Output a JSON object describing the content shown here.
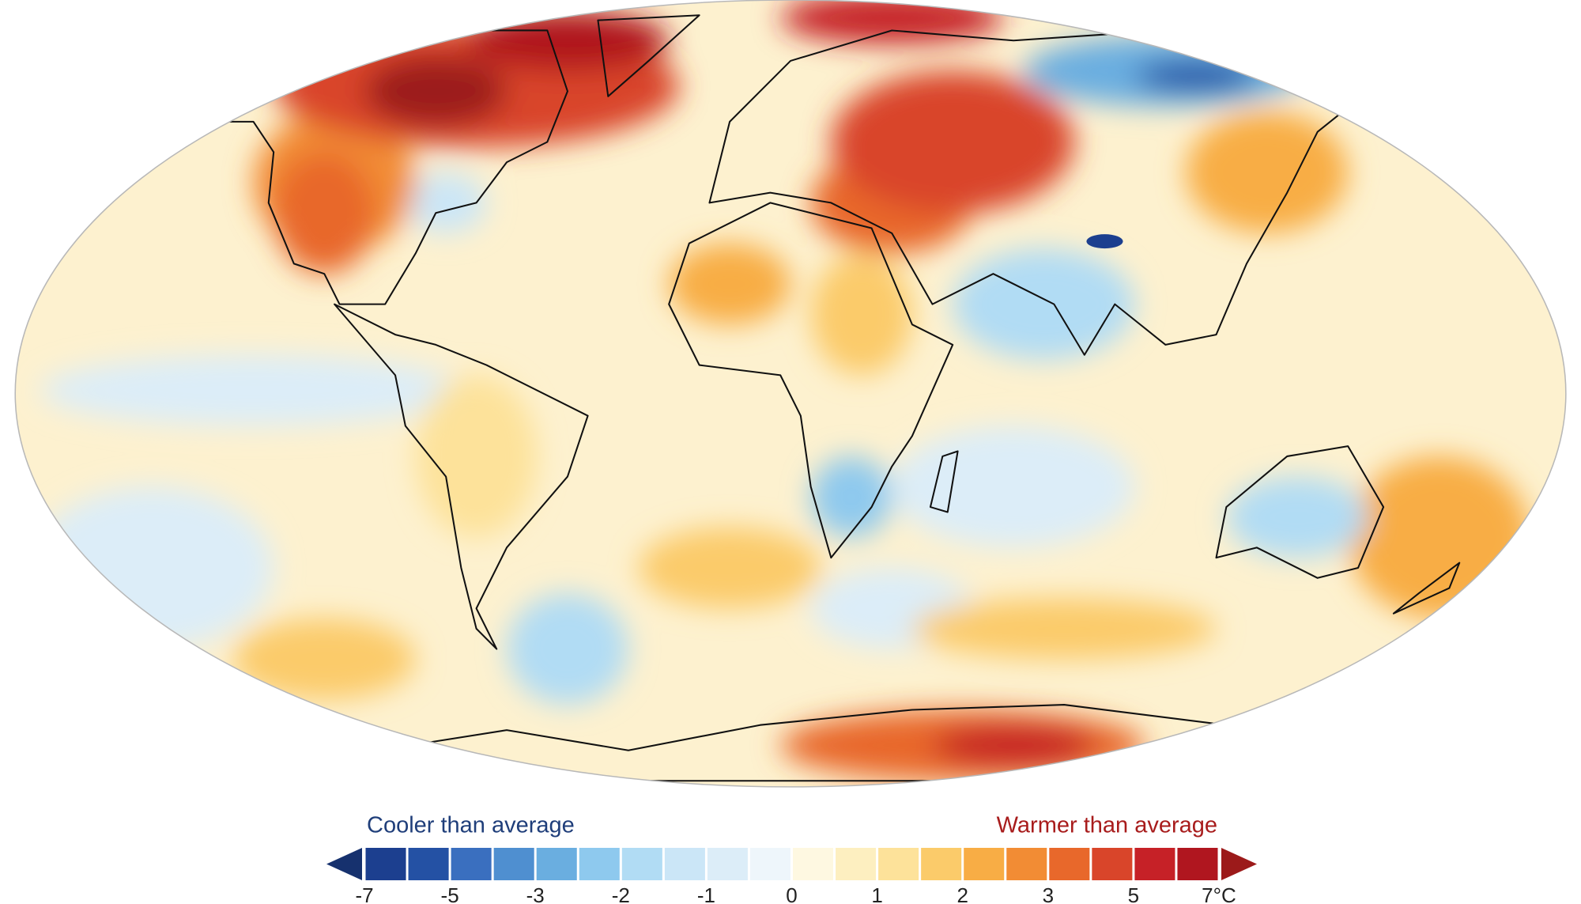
{
  "legend": {
    "cooler_label": "Cooler than average",
    "warmer_label": "Warmer than average",
    "boundaries": [
      -7,
      -6,
      -5,
      -4,
      -3,
      -2.5,
      -2,
      -1.5,
      -1,
      -0.5,
      0,
      0.5,
      1,
      1.5,
      2,
      2.5,
      3,
      4,
      5,
      6,
      7
    ],
    "colors": [
      "#1c3f8f",
      "#2451a4",
      "#3a6fbf",
      "#4f8fd0",
      "#6aaee0",
      "#8ec9ee",
      "#b1dcf4",
      "#cbe6f7",
      "#dcedf8",
      "#eef6fb",
      "#fef8e1",
      "#fdefc0",
      "#fde29a",
      "#fbcb6a",
      "#f8ad45",
      "#f28c34",
      "#e8682b",
      "#d9452a",
      "#c62127",
      "#b0161f"
    ],
    "under_color": "#16316e",
    "over_color": "#9c1a1a",
    "ticks": [
      -7,
      -5,
      -3,
      -2,
      -1,
      0,
      1,
      2,
      3,
      5,
      {
        "value": 7,
        "label": "7°C"
      }
    ]
  }
}
